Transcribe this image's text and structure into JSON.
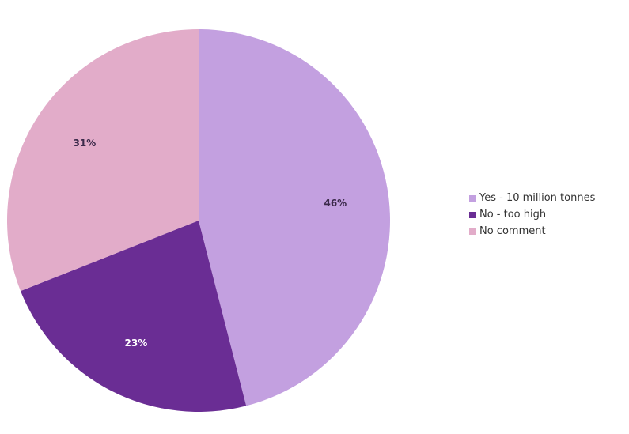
{
  "chart_data": {
    "type": "pie",
    "title": "",
    "categories": [
      "Yes - 10 million tonnes",
      "No - too high",
      "No comment"
    ],
    "values": [
      46,
      23,
      31
    ],
    "data_labels": [
      "46%",
      "23%",
      "31%"
    ],
    "colors": [
      "#c3a0e0",
      "#6a2d94",
      "#e2acc9"
    ],
    "start_angle_deg": 0,
    "direction": "clockwise",
    "legend_position": "right"
  },
  "legend": {
    "items": [
      {
        "label": "Yes - 10 million tonnes",
        "color": "#c3a0e0"
      },
      {
        "label": "No - too high",
        "color": "#6a2d94"
      },
      {
        "label": "No comment",
        "color": "#e2acc9"
      }
    ]
  }
}
